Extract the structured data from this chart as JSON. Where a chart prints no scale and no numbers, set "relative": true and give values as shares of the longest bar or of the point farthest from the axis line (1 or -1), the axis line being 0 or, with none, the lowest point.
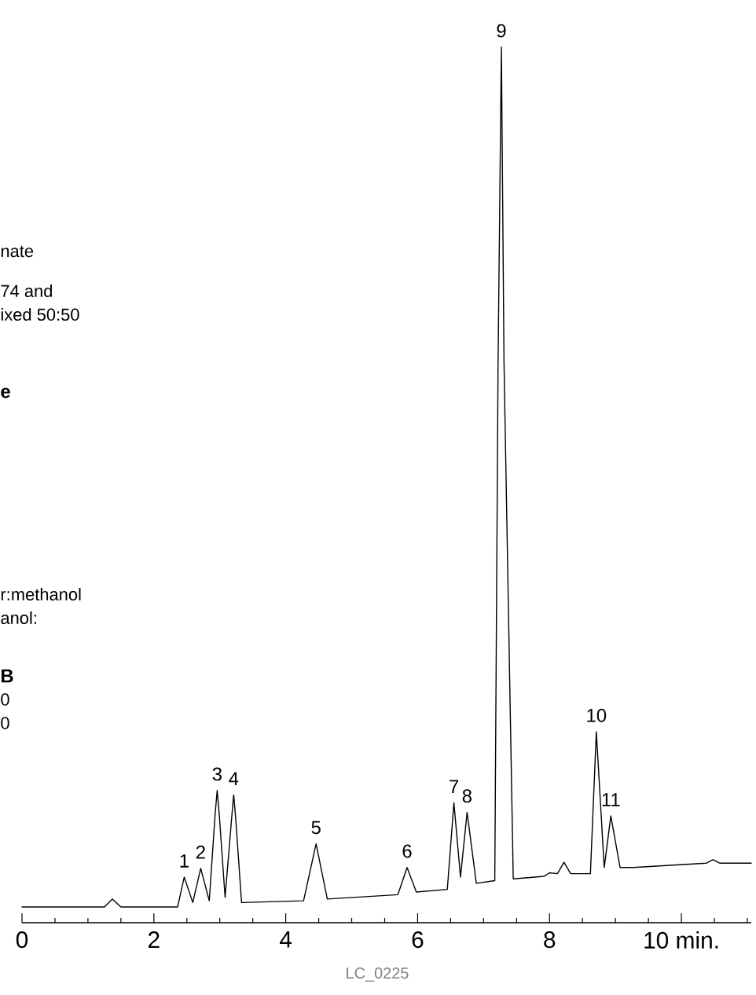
{
  "chart_data": {
    "type": "line",
    "relative": true,
    "color": "#000000",
    "x": [
      0,
      1.25,
      1.37,
      1.5,
      2.36,
      2.46,
      2.59,
      2.71,
      2.84,
      2.93,
      2.96,
      2.99,
      3.08,
      3.18,
      3.21,
      3.24,
      3.33,
      4.27,
      4.46,
      4.63,
      5.7,
      5.84,
      5.98,
      6.45,
      6.55,
      6.65,
      6.75,
      6.89,
      7.17,
      7.22,
      7.27,
      7.31,
      7.45,
      7.92,
      8.0,
      8.12,
      8.22,
      8.32,
      8.62,
      8.71,
      8.83,
      8.93,
      9.07,
      9.27,
      10.38,
      10.48,
      10.58,
      11.06
    ],
    "values": [
      0.018,
      0.018,
      0.027,
      0.018,
      0.018,
      0.052,
      0.023,
      0.062,
      0.025,
      0.125,
      0.151,
      0.125,
      0.029,
      0.12,
      0.146,
      0.12,
      0.023,
      0.025,
      0.09,
      0.027,
      0.032,
      0.063,
      0.035,
      0.038,
      0.137,
      0.052,
      0.126,
      0.045,
      0.048,
      0.64,
      1.0,
      0.64,
      0.05,
      0.053,
      0.057,
      0.056,
      0.069,
      0.056,
      0.056,
      0.218,
      0.063,
      0.122,
      0.063,
      0.063,
      0.068,
      0.072,
      0.068,
      0.068
    ],
    "xlim": [
      0,
      11.06
    ],
    "xticks": [
      0,
      {
        "value": 0.5,
        "label": null
      },
      {
        "value": 1,
        "label": null
      },
      {
        "value": 1.5,
        "label": null
      },
      2,
      {
        "value": 2.5,
        "label": null
      },
      {
        "value": 3,
        "label": null
      },
      {
        "value": 3.5,
        "label": null
      },
      4,
      {
        "value": 4.5,
        "label": null
      },
      {
        "value": 5,
        "label": null
      },
      {
        "value": 5.5,
        "label": null
      },
      6,
      {
        "value": 6.5,
        "label": null
      },
      {
        "value": 7,
        "label": null
      },
      {
        "value": 7.5,
        "label": null
      },
      8,
      {
        "value": 8.5,
        "label": null
      },
      {
        "value": 9,
        "label": null
      },
      {
        "value": 9.5,
        "label": null
      },
      {
        "value": 10,
        "label": "10 min."
      },
      {
        "value": 10.5,
        "label": null
      },
      {
        "value": 11,
        "label": null
      }
    ],
    "annotations": [
      {
        "text": "1",
        "x": 2.46,
        "y": 0.052
      },
      {
        "text": "2",
        "x": 2.71,
        "y": 0.062
      },
      {
        "text": "3",
        "x": 2.96,
        "y": 0.151
      },
      {
        "text": "4",
        "x": 3.21,
        "y": 0.146
      },
      {
        "text": "5",
        "x": 4.46,
        "y": 0.09
      },
      {
        "text": "6",
        "x": 5.84,
        "y": 0.063
      },
      {
        "text": "7",
        "x": 6.55,
        "y": 0.137
      },
      {
        "text": "8",
        "x": 6.75,
        "y": 0.126
      },
      {
        "text": "9",
        "x": 7.27,
        "y": 1.0
      },
      {
        "text": "10",
        "x": 8.71,
        "y": 0.218
      },
      {
        "text": "11",
        "x": 8.93,
        "y": 0.122
      },
      "nate",
      "74 and",
      "ixed 50:50",
      "e",
      "r:methanol",
      "anol:",
      "B",
      "0",
      "0",
      "LC_0225"
    ]
  }
}
